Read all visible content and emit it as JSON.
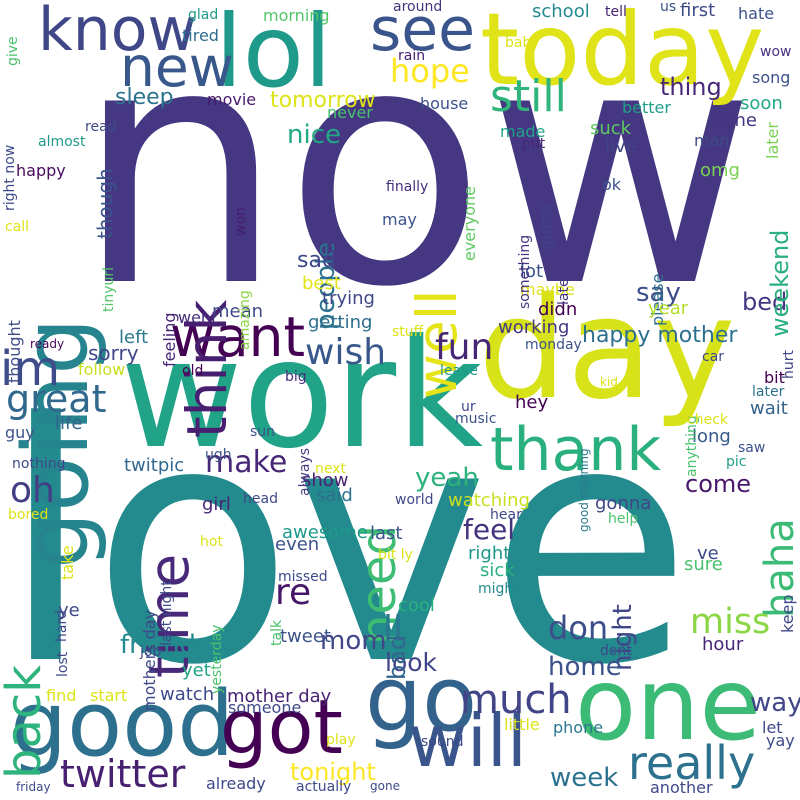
{
  "words": [
    {
      "text": "now",
      "color": "#453781"
    },
    {
      "text": "love",
      "color": "#238a8d"
    },
    {
      "text": "day",
      "color": "#d8e219"
    },
    {
      "text": "work",
      "color": "#20a386"
    },
    {
      "text": "today",
      "color": "#dfe318"
    },
    {
      "text": "going",
      "color": "#25848e"
    },
    {
      "text": "lol",
      "color": "#1f9a8a"
    },
    {
      "text": "one",
      "color": "#3bbb75"
    },
    {
      "text": "good",
      "color": "#2d708e"
    },
    {
      "text": "go",
      "color": "#33638d"
    },
    {
      "text": "got",
      "color": "#440154"
    },
    {
      "text": "will",
      "color": "#39558c"
    },
    {
      "text": "know",
      "color": "#3f4788"
    },
    {
      "text": "see",
      "color": "#3a548c"
    },
    {
      "text": "thank",
      "color": "#2ab07f"
    },
    {
      "text": "time",
      "color": "#482878"
    },
    {
      "text": "want",
      "color": "#440154"
    },
    {
      "text": "think",
      "color": "#481f70"
    },
    {
      "text": "back",
      "color": "#2eb37c"
    },
    {
      "text": "new",
      "color": "#38588c"
    },
    {
      "text": "im",
      "color": "#3e4c8a"
    },
    {
      "text": "well",
      "color": "#e5e419"
    },
    {
      "text": "need",
      "color": "#3dbc74"
    },
    {
      "text": "still",
      "color": "#2fb47c"
    },
    {
      "text": "hope",
      "color": "#fde725"
    },
    {
      "text": "much",
      "color": "#414487"
    },
    {
      "text": "really",
      "color": "#2d718e"
    },
    {
      "text": "twitter",
      "color": "#482071"
    },
    {
      "text": "great",
      "color": "#31688e"
    },
    {
      "text": "fun",
      "color": "#482677"
    },
    {
      "text": "wish",
      "color": "#38588c"
    },
    {
      "text": "haha",
      "color": "#3bbb75"
    },
    {
      "text": "miss",
      "color": "#8bd646"
    },
    {
      "text": "oh",
      "color": "#433e85"
    },
    {
      "text": "re",
      "color": "#481668"
    },
    {
      "text": "ll",
      "color": "#2a788e"
    },
    {
      "text": "don",
      "color": "#3d4e8a"
    },
    {
      "text": "make",
      "color": "#482878"
    },
    {
      "text": "nice",
      "color": "#22a884"
    },
    {
      "text": "people",
      "color": "#2c728e"
    },
    {
      "text": "tomorrow",
      "color": "#dde318"
    },
    {
      "text": "thing",
      "color": "#482979"
    },
    {
      "text": "sleep",
      "color": "#2c738e"
    },
    {
      "text": "friend",
      "color": "#238a8d"
    },
    {
      "text": "feel",
      "color": "#46337f"
    },
    {
      "text": "yeah",
      "color": "#2db27d"
    },
    {
      "text": "night",
      "color": "#3f4788"
    },
    {
      "text": "week",
      "color": "#2c728e"
    },
    {
      "text": "mom",
      "color": "#404688"
    },
    {
      "text": "look",
      "color": "#404387"
    },
    {
      "text": "home",
      "color": "#3b528b"
    },
    {
      "text": "tonight",
      "color": "#fde725"
    },
    {
      "text": "way",
      "color": "#404688"
    },
    {
      "text": "sad",
      "color": "#3e4989"
    },
    {
      "text": "bad",
      "color": "#32658e"
    },
    {
      "text": "say",
      "color": "#3d4e8a"
    },
    {
      "text": "bed",
      "color": "#453781"
    },
    {
      "text": "sorry",
      "color": "#3f4788"
    },
    {
      "text": "happy mother",
      "color": "#2d708e"
    },
    {
      "text": "weekend",
      "color": "#2ab07f"
    },
    {
      "text": "though",
      "color": "#3a548c"
    },
    {
      "text": "come",
      "color": "#481769"
    },
    {
      "text": "hour",
      "color": "#482677"
    },
    {
      "text": "right",
      "color": "#1f958b"
    },
    {
      "text": "last",
      "color": "#39568c"
    },
    {
      "text": "wait",
      "color": "#33628d"
    },
    {
      "text": "long",
      "color": "#375a8c"
    },
    {
      "text": "hey",
      "color": "#440154"
    },
    {
      "text": "cool",
      "color": "#29af7f"
    },
    {
      "text": "sick",
      "color": "#2ab07f"
    },
    {
      "text": "awesome",
      "color": "#1f9a8a"
    },
    {
      "text": "tweet",
      "color": "#3b528b"
    },
    {
      "text": "mother day",
      "color": "#482475"
    },
    {
      "text": "watch",
      "color": "#3e4989"
    },
    {
      "text": "yet",
      "color": "#20a386"
    },
    {
      "text": "girl",
      "color": "#482475"
    },
    {
      "text": "show",
      "color": "#482071"
    },
    {
      "text": "said",
      "color": "#2d718e"
    },
    {
      "text": "even",
      "color": "#3b528b"
    },
    {
      "text": "watching",
      "color": "#c8e020"
    },
    {
      "text": "gonna",
      "color": "#3f4788"
    },
    {
      "text": "life",
      "color": "#33638d"
    },
    {
      "text": "twitpic",
      "color": "#31678e"
    },
    {
      "text": "working",
      "color": "#453882"
    },
    {
      "text": "didn",
      "color": "#440154"
    },
    {
      "text": "maybe",
      "color": "#dde318"
    },
    {
      "text": "lot",
      "color": "#3b528b"
    },
    {
      "text": "trying",
      "color": "#3f4788"
    },
    {
      "text": "getting",
      "color": "#2d708e"
    },
    {
      "text": "best",
      "color": "#e5e419"
    },
    {
      "text": "mean",
      "color": "#3e4989"
    },
    {
      "text": "went",
      "color": "#46307e"
    },
    {
      "text": "left",
      "color": "#2a788e"
    },
    {
      "text": "follow",
      "color": "#c8e020"
    },
    {
      "text": "school",
      "color": "#238a8d"
    },
    {
      "text": "first",
      "color": "#3e4c8a"
    },
    {
      "text": "hate",
      "color": "#3b528b"
    },
    {
      "text": "song",
      "color": "#3b528b"
    },
    {
      "text": "soon",
      "color": "#22a884"
    },
    {
      "text": "better",
      "color": "#1f9e89"
    },
    {
      "text": "done",
      "color": "#463480"
    },
    {
      "text": "man",
      "color": "#3e4c8a"
    },
    {
      "text": "omg",
      "color": "#77d153"
    },
    {
      "text": "later",
      "color": "#7ad151"
    },
    {
      "text": "live",
      "color": "#404688"
    },
    {
      "text": "suck",
      "color": "#5ec962"
    },
    {
      "text": "ok",
      "color": "#3b528b"
    },
    {
      "text": "please",
      "color": "#2e6f8e"
    },
    {
      "text": "year",
      "color": "#b5de2b"
    },
    {
      "text": "house",
      "color": "#3b528b"
    },
    {
      "text": "movie",
      "color": "#481a6c"
    },
    {
      "text": "never",
      "color": "#48c16e"
    },
    {
      "text": "made",
      "color": "#20a386"
    },
    {
      "text": "put",
      "color": "#482878"
    },
    {
      "text": "guess",
      "color": "#404387"
    },
    {
      "text": "something",
      "color": "#46337f"
    },
    {
      "text": "everyone",
      "color": "#5ec962"
    },
    {
      "text": "finally",
      "color": "#46307e"
    },
    {
      "text": "may",
      "color": "#3b528b"
    },
    {
      "text": "late",
      "color": "#453781"
    },
    {
      "text": "tired",
      "color": "#2e6e8e"
    },
    {
      "text": "morning",
      "color": "#52c569"
    },
    {
      "text": "glad",
      "color": "#1f9a8a"
    },
    {
      "text": "around",
      "color": "#46327e"
    },
    {
      "text": "tell",
      "color": "#482475"
    },
    {
      "text": "us",
      "color": "#3b528b"
    },
    {
      "text": "rain",
      "color": "#482071"
    },
    {
      "text": "baby",
      "color": "#dde318"
    },
    {
      "text": "wow",
      "color": "#46327e"
    },
    {
      "text": "read",
      "color": "#3e4c8a"
    },
    {
      "text": "almost",
      "color": "#1f9a8a"
    },
    {
      "text": "happy",
      "color": "#460b5e"
    },
    {
      "text": "right now",
      "color": "#3e4989"
    },
    {
      "text": "give",
      "color": "#4ac16d"
    },
    {
      "text": "call",
      "color": "#dde318"
    },
    {
      "text": "thought",
      "color": "#3e4c8a"
    },
    {
      "text": "tinyurl",
      "color": "#52c569"
    },
    {
      "text": "feeling",
      "color": "#482475"
    },
    {
      "text": "amazing",
      "color": "#8bd646"
    },
    {
      "text": "won",
      "color": "#481c6e"
    },
    {
      "text": "ready",
      "color": "#450559"
    },
    {
      "text": "old",
      "color": "#440154"
    },
    {
      "text": "big",
      "color": "#46307e"
    },
    {
      "text": "leave",
      "color": "#1f9a8a"
    },
    {
      "text": "always",
      "color": "#433e85"
    },
    {
      "text": "music",
      "color": "#3b528b"
    },
    {
      "text": "ur",
      "color": "#3e4989"
    },
    {
      "text": "good morning",
      "color": "#2a788e"
    },
    {
      "text": "kid",
      "color": "#dde318"
    },
    {
      "text": "anything",
      "color": "#4ac16d"
    },
    {
      "text": "car",
      "color": "#3e4989"
    },
    {
      "text": "hurt",
      "color": "#404688"
    },
    {
      "text": "bit",
      "color": "#440154"
    },
    {
      "text": "later_2",
      "color": "#2c728e"
    },
    {
      "text": "check",
      "color": "#dde318"
    },
    {
      "text": "saw",
      "color": "#3b528b"
    },
    {
      "text": "pic",
      "color": "#1f9e89"
    },
    {
      "text": "monday",
      "color": "#3b528b"
    },
    {
      "text": "stuff",
      "color": "#dde318"
    },
    {
      "text": "guy",
      "color": "#3b528b"
    },
    {
      "text": "nothing",
      "color": "#3e4989"
    },
    {
      "text": "ugh",
      "color": "#3b528b"
    },
    {
      "text": "sun",
      "color": "#3b528b"
    },
    {
      "text": "next",
      "color": "#dde318"
    },
    {
      "text": "head",
      "color": "#3e4989"
    },
    {
      "text": "world",
      "color": "#3e4989"
    },
    {
      "text": "bored",
      "color": "#dde318"
    },
    {
      "text": "take",
      "color": "#dde318"
    },
    {
      "text": "hot",
      "color": "#dde318"
    },
    {
      "text": "last night",
      "color": "#3e4989"
    },
    {
      "text": "mothers day",
      "color": "#3e4989"
    },
    {
      "text": "job",
      "color": "#3e4989"
    },
    {
      "text": "yesterday",
      "color": "#4ac16d"
    },
    {
      "text": "talk",
      "color": "#4ac16d"
    },
    {
      "text": "missed",
      "color": "#3e4989"
    },
    {
      "text": "might",
      "color": "#238a8d"
    },
    {
      "text": "bit ly",
      "color": "#dde318"
    },
    {
      "text": "hear",
      "color": "#3e4989"
    },
    {
      "text": "help",
      "color": "#4ac16d"
    },
    {
      "text": "ve",
      "color": "#3e4989"
    },
    {
      "text": "sure",
      "color": "#4ac16d"
    },
    {
      "text": "keep",
      "color": "#3e4989"
    },
    {
      "text": "dont",
      "color": "#3e4989"
    },
    {
      "text": "lost",
      "color": "#3e4989"
    },
    {
      "text": "hard",
      "color": "#3e4989"
    },
    {
      "text": "ye",
      "color": "#3e4989"
    },
    {
      "text": "find",
      "color": "#dde318"
    },
    {
      "text": "start",
      "color": "#dde318"
    },
    {
      "text": "someone",
      "color": "#3e4989"
    },
    {
      "text": "little",
      "color": "#dde318"
    },
    {
      "text": "play",
      "color": "#dde318"
    },
    {
      "text": "sound",
      "color": "#3e4989"
    },
    {
      "text": "phone",
      "color": "#2a788e"
    },
    {
      "text": "let",
      "color": "#3e4989"
    },
    {
      "text": "yay",
      "color": "#3e4989"
    },
    {
      "text": "friday",
      "color": "#3e4989"
    },
    {
      "text": "already",
      "color": "#3e4989"
    },
    {
      "text": "actually",
      "color": "#3e4989"
    },
    {
      "text": "gone",
      "color": "#3e4989"
    },
    {
      "text": "another",
      "color": "#3e4989"
    }
  ]
}
